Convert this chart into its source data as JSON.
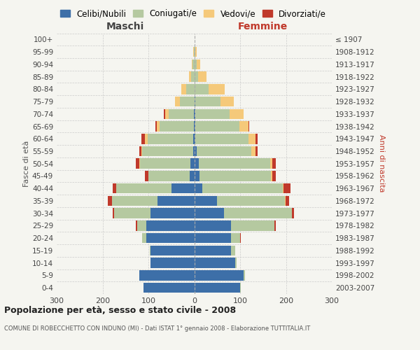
{
  "age_groups": [
    "0-4",
    "5-9",
    "10-14",
    "15-19",
    "20-24",
    "25-29",
    "30-34",
    "35-39",
    "40-44",
    "45-49",
    "50-54",
    "55-59",
    "60-64",
    "65-69",
    "70-74",
    "75-79",
    "80-84",
    "85-89",
    "90-94",
    "95-99",
    "100+"
  ],
  "birth_years": [
    "2003-2007",
    "1998-2002",
    "1993-1997",
    "1988-1992",
    "1983-1987",
    "1978-1982",
    "1973-1977",
    "1968-1972",
    "1963-1967",
    "1958-1962",
    "1953-1957",
    "1948-1952",
    "1943-1947",
    "1938-1942",
    "1933-1937",
    "1928-1932",
    "1923-1927",
    "1918-1922",
    "1913-1917",
    "1908-1912",
    "≤ 1907"
  ],
  "males": {
    "single": [
      110,
      120,
      95,
      95,
      105,
      105,
      95,
      80,
      50,
      10,
      8,
      3,
      2,
      1,
      1,
      0,
      0,
      0,
      0,
      0,
      0
    ],
    "married": [
      0,
      0,
      1,
      2,
      8,
      20,
      80,
      100,
      120,
      90,
      110,
      110,
      100,
      75,
      55,
      32,
      18,
      7,
      4,
      1,
      0
    ],
    "widowed": [
      0,
      0,
      0,
      0,
      0,
      0,
      0,
      0,
      0,
      0,
      2,
      2,
      5,
      6,
      8,
      10,
      10,
      5,
      1,
      1,
      0
    ],
    "divorced": [
      0,
      0,
      0,
      0,
      0,
      2,
      3,
      8,
      8,
      8,
      8,
      5,
      8,
      3,
      2,
      0,
      0,
      0,
      0,
      0,
      0
    ]
  },
  "females": {
    "single": [
      100,
      108,
      90,
      80,
      80,
      80,
      65,
      50,
      18,
      12,
      10,
      5,
      3,
      3,
      2,
      2,
      1,
      1,
      0,
      0,
      0
    ],
    "married": [
      1,
      2,
      2,
      10,
      20,
      95,
      148,
      148,
      175,
      155,
      155,
      120,
      115,
      95,
      75,
      55,
      30,
      8,
      5,
      2,
      0
    ],
    "widowed": [
      0,
      0,
      0,
      0,
      0,
      0,
      0,
      1,
      2,
      3,
      5,
      8,
      15,
      20,
      30,
      30,
      35,
      18,
      8,
      3,
      1
    ],
    "divorced": [
      0,
      0,
      0,
      0,
      2,
      3,
      5,
      8,
      15,
      8,
      8,
      5,
      5,
      2,
      1,
      0,
      0,
      0,
      0,
      0,
      0
    ]
  },
  "colors": {
    "single": "#3d6fa8",
    "married": "#b5c9a0",
    "widowed": "#f5c97a",
    "divorced": "#c0392b"
  },
  "legend_labels": [
    "Celibi/Nubili",
    "Coniugati/e",
    "Vedovi/e",
    "Divorziati/e"
  ],
  "title": "Popolazione per età, sesso e stato civile - 2008",
  "subtitle": "COMUNE DI ROBECCHETTO CON INDUNO (MI) - Dati ISTAT 1° gennaio 2008 - Elaborazione TUTTITALIA.IT",
  "maschi_label": "Maschi",
  "femmine_label": "Femmine",
  "ylabel_left": "Fasce di età",
  "ylabel_right": "Anni di nascita",
  "xlim": 300,
  "bg_color": "#f5f5f0",
  "grid_color": "#cccccc"
}
